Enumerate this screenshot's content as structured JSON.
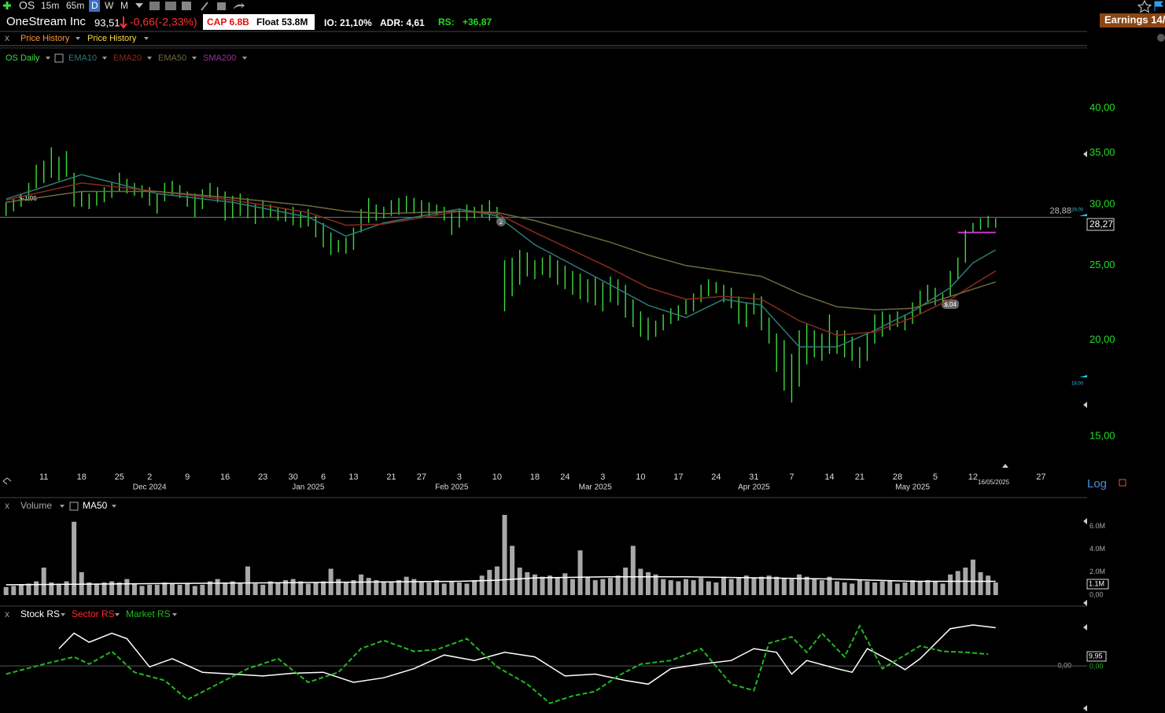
{
  "toolbar": {
    "symbol": "OS",
    "intervals": [
      "15m",
      "65m",
      "D",
      "W",
      "M"
    ],
    "earnings": "Earnings 14/"
  },
  "header": {
    "name": "OneStream Inc",
    "price": "93,51",
    "change": "-0,66(-2,33%)",
    "cap": "CAP 6.8B",
    "float": "Float 53.8M",
    "io": "IO: 21,10%",
    "adr": "ADR: 4,61",
    "rs_label": "RS:",
    "rs": "+36,87"
  },
  "tabs": {
    "close": "x",
    "items": [
      "Price History",
      "Price History"
    ]
  },
  "chart_data": [
    {
      "type": "ohlc",
      "log_scale": true,
      "grid": false,
      "ylim": [
        13.5,
        47.8
      ],
      "xlim": [
        -0.8,
        142.9
      ],
      "yticks": [
        {
          "value": 15,
          "label": "15,00"
        },
        {
          "value": 20,
          "label": "20,00"
        },
        {
          "value": 25,
          "label": "25,00"
        },
        {
          "value": 30,
          "label": "30,00"
        },
        {
          "value": 35,
          "label": "35,00"
        },
        {
          "value": 40,
          "label": "40,00"
        }
      ],
      "xticks": [
        {
          "value": 5,
          "label": "11"
        },
        {
          "value": 10,
          "label": "18"
        },
        {
          "value": 15,
          "label": "25"
        },
        {
          "value": 19,
          "label": "2"
        },
        {
          "value": 24,
          "label": "9"
        },
        {
          "value": 29,
          "label": "16"
        },
        {
          "value": 34,
          "label": "23"
        },
        {
          "value": 38,
          "label": "30"
        },
        {
          "value": 42,
          "label": "6"
        },
        {
          "value": 46,
          "label": "13"
        },
        {
          "value": 51,
          "label": "21"
        },
        {
          "value": 55,
          "label": "27"
        },
        {
          "value": 60,
          "label": "3"
        },
        {
          "value": 65,
          "label": "10"
        },
        {
          "value": 70,
          "label": "18"
        },
        {
          "value": 74,
          "label": "24"
        },
        {
          "value": 79,
          "label": "3"
        },
        {
          "value": 84,
          "label": "10"
        },
        {
          "value": 89,
          "label": "17"
        },
        {
          "value": 94,
          "label": "24"
        },
        {
          "value": 99,
          "label": "31"
        },
        {
          "value": 104,
          "label": "7"
        },
        {
          "value": 109,
          "label": "14"
        },
        {
          "value": 113,
          "label": "21"
        },
        {
          "value": 118,
          "label": "28"
        },
        {
          "value": 123,
          "label": "5"
        },
        {
          "value": 128,
          "label": "12"
        },
        {
          "value": 137,
          "label": "27"
        }
      ],
      "month_ticks": [
        {
          "value": 19,
          "label": "Dec 2024"
        },
        {
          "value": 40,
          "label": "Jan 2025"
        },
        {
          "value": 59,
          "label": "Feb 2025"
        },
        {
          "value": 78,
          "label": "Mar 2025"
        },
        {
          "value": 99,
          "label": "Apr 2025"
        },
        {
          "value": 120,
          "label": "May 2025"
        }
      ],
      "reference_line": {
        "value": 28.88,
        "label": "28,88"
      },
      "pivot": {
        "value": 27.6,
        "x": [
          126,
          131
        ]
      },
      "annotations": {
        "eps_1": "$-1,06",
        "marker": "2",
        "eps_2": "$,04",
        "last_price": "28,27",
        "alert_high": "29,00",
        "alert_low": "18,00",
        "date": "16/05/2025",
        "scale": "Log"
      },
      "series": [
        {
          "name": "OS Daily",
          "color": "#3fdc3f",
          "high": [
            30.2,
            30.5,
            31.0,
            32.0,
            33.8,
            34.2,
            35.6,
            34.6,
            35.2,
            33.0,
            31.2,
            31.0,
            31.2,
            31.6,
            32.0,
            33.0,
            32.4,
            32.0,
            31.8,
            31.6,
            31.0,
            32.0,
            32.2,
            31.8,
            31.2,
            31.0,
            31.4,
            32.0,
            31.6,
            31.2,
            30.8,
            31.0,
            30.6,
            30.0,
            30.4,
            30.0,
            29.8,
            29.6,
            29.8,
            29.4,
            29.6,
            29.0,
            28.4,
            27.6,
            27.0,
            27.2,
            28.0,
            29.6,
            30.6,
            30.0,
            29.8,
            30.4,
            30.6,
            30.8,
            30.6,
            30.4,
            30.2,
            30.0,
            29.8,
            29.4,
            29.6,
            30.0,
            29.8,
            30.0,
            30.4,
            29.8,
            25.4,
            25.6,
            26.2,
            26.0,
            25.4,
            25.6,
            25.8,
            25.4,
            25.0,
            24.6,
            24.4,
            24.0,
            24.2,
            23.8,
            24.2,
            24.0,
            23.6,
            22.6,
            21.8,
            21.4,
            21.2,
            21.6,
            22.0,
            22.2,
            22.6,
            23.0,
            23.6,
            24.0,
            23.8,
            23.6,
            23.4,
            22.8,
            22.4,
            23.0,
            22.8,
            21.4,
            20.4,
            20.0,
            19.2,
            20.6,
            21.0,
            20.6,
            20.4,
            21.6,
            20.6,
            20.6,
            20.2,
            19.6,
            20.4,
            21.6,
            21.8,
            21.6,
            21.8,
            21.6,
            22.4,
            23.2,
            23.6,
            23.4,
            23.0,
            24.6,
            25.6,
            27.8,
            28.4,
            28.8,
            29.0,
            28.8
          ],
          "low": [
            29.0,
            29.4,
            29.8,
            30.4,
            31.5,
            32.0,
            32.5,
            32.2,
            32.6,
            29.8,
            29.8,
            29.6,
            29.9,
            30.2,
            30.6,
            31.2,
            31.0,
            30.8,
            30.6,
            29.9,
            29.2,
            30.3,
            30.8,
            30.6,
            29.8,
            28.9,
            29.6,
            30.6,
            30.2,
            28.6,
            28.8,
            29.0,
            28.8,
            28.3,
            28.8,
            28.9,
            28.6,
            28.5,
            28.2,
            28.0,
            28.1,
            27.2,
            26.4,
            25.8,
            26.0,
            25.9,
            26.2,
            27.6,
            28.4,
            28.6,
            28.8,
            29.0,
            29.1,
            29.3,
            29.2,
            28.9,
            29.0,
            29.0,
            28.6,
            27.4,
            28.0,
            28.6,
            28.8,
            28.9,
            28.6,
            28.8,
            21.8,
            22.8,
            23.6,
            24.2,
            24.0,
            24.3,
            24.1,
            23.6,
            23.3,
            22.9,
            22.6,
            22.4,
            22.2,
            21.8,
            22.4,
            22.2,
            21.4,
            20.8,
            20.2,
            20.0,
            20.2,
            20.6,
            21.0,
            21.2,
            21.6,
            21.8,
            22.4,
            22.8,
            23.0,
            22.4,
            22.0,
            21.0,
            20.8,
            21.6,
            20.6,
            19.8,
            18.2,
            17.2,
            16.6,
            17.4,
            18.6,
            19.0,
            18.8,
            19.2,
            19.2,
            19.0,
            18.8,
            18.4,
            18.8,
            19.8,
            20.2,
            20.6,
            20.8,
            20.6,
            21.0,
            21.6,
            22.4,
            22.2,
            22.4,
            22.8,
            24.0,
            25.2,
            27.6,
            27.8,
            28.0,
            28.0
          ]
        },
        {
          "name": "EMA10",
          "color": "#2e7a78",
          "x": [
            0,
            10,
            20,
            30,
            40,
            45,
            50,
            60,
            65,
            70,
            80,
            85,
            90,
            95,
            100,
            105,
            110,
            115,
            120,
            125,
            128,
            131
          ],
          "values": [
            30.5,
            32.8,
            31.0,
            30.2,
            28.9,
            27.3,
            28.4,
            29.6,
            29.0,
            26.6,
            23.6,
            22.2,
            21.4,
            22.6,
            22.2,
            19.6,
            19.6,
            20.6,
            21.8,
            23.4,
            25.2,
            26.2
          ]
        },
        {
          "name": "EMA20",
          "color": "#8a2a1c",
          "x": [
            0,
            10,
            20,
            30,
            40,
            45,
            50,
            60,
            65,
            70,
            80,
            85,
            90,
            95,
            100,
            105,
            110,
            115,
            120,
            125,
            128,
            131
          ],
          "values": [
            30.4,
            32.0,
            31.2,
            30.4,
            29.3,
            28.2,
            28.3,
            29.4,
            29.2,
            27.6,
            24.8,
            23.4,
            22.6,
            22.8,
            22.6,
            21.2,
            20.3,
            20.5,
            21.4,
            22.6,
            23.6,
            24.6
          ]
        },
        {
          "name": "EMA50",
          "color": "#6e6a3c",
          "x": [
            0,
            10,
            20,
            30,
            40,
            45,
            50,
            60,
            65,
            70,
            80,
            85,
            90,
            95,
            100,
            105,
            110,
            115,
            120,
            125,
            128,
            131
          ],
          "values": [
            30.2,
            31.2,
            31.2,
            30.6,
            29.9,
            29.4,
            29.2,
            29.4,
            29.3,
            28.6,
            26.8,
            25.8,
            25.0,
            24.6,
            24.2,
            23.0,
            22.1,
            21.9,
            22.0,
            22.8,
            23.3,
            23.8
          ]
        },
        {
          "name": "SMA200",
          "color": "#993399"
        }
      ]
    },
    {
      "type": "bar",
      "ylim": [
        0,
        7
      ],
      "xlim": [
        -0.8,
        142.9
      ],
      "yticks": [
        {
          "value": 6,
          "label": "6.0M"
        },
        {
          "value": 4,
          "label": "4.0M"
        },
        {
          "value": 2,
          "label": "2.0M"
        },
        {
          "value": 0,
          "label": "0,00"
        }
      ],
      "annotations": {
        "close": "x",
        "last": "1.1M"
      },
      "series": [
        {
          "name": "Volume",
          "color": "#a8a8a8",
          "values": [
            0.7,
            0.8,
            0.9,
            1.0,
            1.2,
            2.4,
            1.1,
            1.0,
            1.2,
            6.4,
            2.0,
            1.1,
            1.0,
            1.1,
            1.2,
            1.1,
            1.4,
            1.0,
            0.8,
            0.9,
            0.9,
            1.1,
            1.0,
            0.9,
            1.0,
            0.8,
            0.9,
            1.2,
            1.4,
            1.1,
            1.2,
            1.0,
            2.5,
            1.0,
            0.9,
            1.2,
            1.1,
            1.3,
            1.4,
            1.2,
            1.0,
            1.1,
            1.2,
            2.3,
            1.4,
            1.1,
            1.3,
            1.8,
            1.5,
            1.3,
            1.2,
            1.1,
            1.3,
            1.6,
            1.4,
            1.2,
            1.1,
            1.3,
            1.0,
            1.2,
            1.1,
            1.0,
            1.3,
            1.7,
            2.2,
            2.5,
            7.0,
            4.3,
            2.4,
            2.0,
            1.8,
            1.6,
            1.7,
            1.5,
            1.9,
            1.4,
            3.9,
            1.6,
            1.3,
            1.4,
            1.5,
            1.7,
            2.4,
            4.3,
            2.3,
            2.0,
            1.8,
            1.4,
            1.3,
            1.2,
            1.4,
            1.3,
            1.5,
            1.2,
            1.1,
            1.6,
            1.4,
            1.5,
            1.7,
            1.5,
            1.6,
            1.7,
            1.6,
            1.5,
            1.4,
            1.8,
            1.6,
            1.4,
            1.3,
            1.6,
            1.2,
            1.1,
            1.0,
            1.3,
            1.2,
            1.1,
            1.2,
            1.3,
            1.0,
            1.1,
            1.3,
            1.2,
            1.3,
            1.2,
            1.0,
            1.8,
            2.1,
            2.4,
            3.1,
            2.0,
            1.7,
            1.1
          ]
        },
        {
          "name": "MA50",
          "color": "#ffffff",
          "x": [
            0,
            20,
            40,
            60,
            65,
            70,
            80,
            90,
            100,
            110,
            115,
            120,
            125,
            131
          ],
          "values": [
            0.9,
            1.0,
            1.1,
            1.2,
            1.3,
            1.5,
            1.6,
            1.6,
            1.5,
            1.4,
            1.3,
            1.2,
            1.2,
            1.2
          ]
        }
      ]
    },
    {
      "type": "line",
      "ylim": [
        -50,
        58
      ],
      "xlim": [
        -0.8,
        142.9
      ],
      "yticks": [
        {
          "value": 0,
          "label": "0,00"
        }
      ],
      "annotations": {
        "close": "x",
        "stock_last": "9,95",
        "market_last": "0,00"
      },
      "series": [
        {
          "name": "Stock RS",
          "color": "#ffffff",
          "x": [
            7,
            9,
            11,
            14,
            16,
            19,
            22,
            26,
            30,
            34,
            38,
            42,
            46,
            50,
            54,
            58,
            62,
            66,
            70,
            74,
            78,
            82,
            85,
            88,
            92,
            96,
            99,
            102,
            104,
            106,
            110,
            112,
            114,
            117,
            119,
            121,
            125,
            128,
            131
          ],
          "values": [
            19,
            36,
            26,
            36,
            30,
            -1,
            8,
            -7,
            -9,
            -11,
            -8,
            -7,
            -18,
            -13,
            -3,
            12,
            6,
            15,
            10,
            -11,
            -9,
            -16,
            -20,
            -3,
            2,
            6,
            19,
            15,
            -9,
            6,
            -3,
            -7,
            19,
            6,
            -4,
            8,
            41,
            45,
            42
          ]
        },
        {
          "name": "Sector RS",
          "color": "#ff2a2a"
        },
        {
          "name": "Market RS",
          "color": "#22b822",
          "dashed": true,
          "x": [
            0,
            5,
            9,
            11,
            14,
            17,
            21,
            24,
            28,
            32,
            36,
            40,
            44,
            47,
            50,
            54,
            57,
            61,
            65,
            69,
            72,
            75,
            78,
            81,
            84,
            88,
            92,
            96,
            99,
            101,
            104,
            106,
            108,
            111,
            113,
            116,
            119,
            121,
            124,
            127,
            130
          ],
          "values": [
            -9,
            2,
            10,
            2,
            16,
            -7,
            -16,
            -37,
            -20,
            -3,
            8,
            -18,
            -7,
            19,
            28,
            16,
            18,
            30,
            -1,
            -20,
            -41,
            -33,
            -28,
            -11,
            2,
            6,
            19,
            -20,
            -27,
            25,
            32,
            15,
            36,
            10,
            44,
            -3,
            12,
            22,
            16,
            15,
            13
          ]
        }
      ]
    }
  ]
}
